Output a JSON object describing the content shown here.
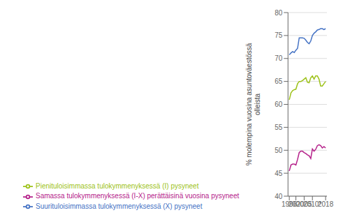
{
  "chart_data": {
    "type": "line",
    "ylabel": "% molempina vuosina asuntoväestössä\nolleista",
    "x": [
      1996,
      1997,
      1998,
      1999,
      2000,
      2001,
      2002,
      2003,
      2004,
      2005,
      2006,
      2007,
      2008,
      2009,
      2010,
      2011,
      2012,
      2013,
      2014,
      2015,
      2016,
      2017,
      2018
    ],
    "series": [
      {
        "name": "Suurituloisimmassa  tulokymmenyksessä (X) pysyneet",
        "color": "#4472c4",
        "values": [
          70.8,
          71.2,
          71.5,
          71.3,
          71.8,
          72.2,
          74.5,
          74.5,
          74.5,
          74.4,
          74.0,
          73.5,
          73.2,
          73.8,
          75.0,
          75.5,
          75.8,
          76.2,
          76.3,
          76.5,
          76.5,
          76.3,
          76.5
        ]
      },
      {
        "name": "Pienituloisimmassa tulokymmenyksessä (I) pysyneet",
        "color": "#9dc219",
        "values": [
          61.0,
          62.5,
          63.0,
          63.2,
          63.3,
          64.5,
          65.0,
          65.0,
          65.2,
          65.5,
          65.8,
          64.8,
          64.7,
          65.8,
          66.2,
          65.5,
          66.2,
          66.2,
          65.5,
          64.0,
          64.0,
          64.5,
          65.0
        ]
      },
      {
        "name": "Samassa tulokymmenyksessä (I-X) perättäisinä vuosina pysyneet",
        "color": "#b5218a",
        "values": [
          45.5,
          46.8,
          47.0,
          47.0,
          46.8,
          48.0,
          49.5,
          49.8,
          49.8,
          49.5,
          49.3,
          49.0,
          48.8,
          48.2,
          50.3,
          49.8,
          50.2,
          51.0,
          51.2,
          51.0,
          50.5,
          50.8,
          50.5
        ]
      }
    ],
    "xlim": [
      1995.2,
      2018.8
    ],
    "xticks": [
      1996,
      2000,
      2005,
      {
        "value": 2010,
        "label": "2010*"
      },
      2018
    ],
    "ylim": [
      40,
      80
    ],
    "yticks": [
      40,
      45,
      50,
      55,
      60,
      65,
      70,
      75,
      80
    ],
    "grid": true,
    "legend": "bottom"
  }
}
